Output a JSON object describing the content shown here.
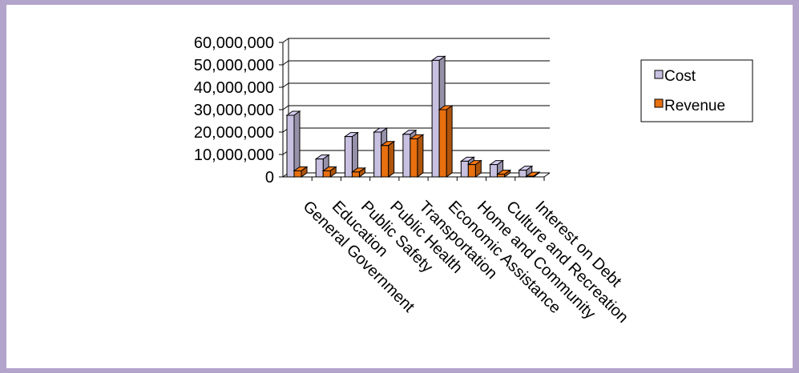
{
  "chart_data": {
    "type": "bar",
    "title": "",
    "xlabel": "",
    "ylabel": "",
    "ylim": [
      0,
      60000000
    ],
    "yticks": [
      0,
      10000000,
      20000000,
      30000000,
      40000000,
      50000000,
      60000000
    ],
    "ytick_labels": [
      "0",
      "10,000,000",
      "20,000,000",
      "30,000,000",
      "40,000,000",
      "50,000,000",
      "60,000,000"
    ],
    "grid": true,
    "legend_position": "right",
    "categories": [
      "General Government",
      "Education",
      "Public Safety",
      "Public Health",
      "Transportation",
      "Economic Assistance",
      "Home and Community",
      "Culture and Recreation",
      "Interest on Debt"
    ],
    "series": [
      {
        "name": "Cost",
        "color": "#c8c0e0",
        "values": [
          27500000,
          8000000,
          18000000,
          20000000,
          19000000,
          52000000,
          7000000,
          5500000,
          3000000
        ]
      },
      {
        "name": "Revenue",
        "color": "#e8700f",
        "values": [
          2700000,
          2700000,
          2200000,
          14000000,
          17000000,
          30000000,
          5500000,
          1200000,
          300000
        ]
      }
    ]
  }
}
